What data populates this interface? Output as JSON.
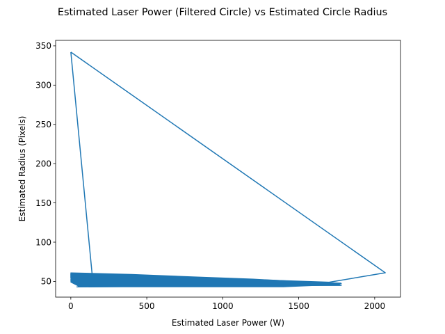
{
  "chart_data": {
    "type": "line",
    "title": "Estimated Laser Power (Filtered Circle) vs Estimated Circle Radius",
    "xlabel": "Estimated Laser Power (W)",
    "ylabel": "Estimated Radius (Pixels)",
    "xlim": [
      -100,
      2170
    ],
    "ylim": [
      30,
      357
    ],
    "xticks": [
      0,
      500,
      1000,
      1500,
      2000
    ],
    "yticks": [
      50,
      100,
      150,
      200,
      250,
      300,
      350
    ],
    "grid": false,
    "line_color": "#1f77b4",
    "series": [
      {
        "x": [
          0,
          2070,
          1700,
          0,
          1780,
          50,
          1700,
          0,
          1770,
          50,
          1720,
          0,
          1760,
          60,
          1690,
          0,
          1750,
          40,
          1730,
          0,
          1780,
          50,
          1700,
          0,
          1770,
          60,
          1720,
          0,
          140,
          0
        ],
        "y": [
          342,
          61,
          49,
          60,
          47,
          44,
          48,
          59,
          46,
          43,
          47,
          58,
          46,
          44,
          47,
          57,
          46,
          43,
          47,
          56,
          45,
          44,
          47,
          55,
          46,
          43,
          47,
          52,
          60,
          342
        ]
      }
    ]
  }
}
